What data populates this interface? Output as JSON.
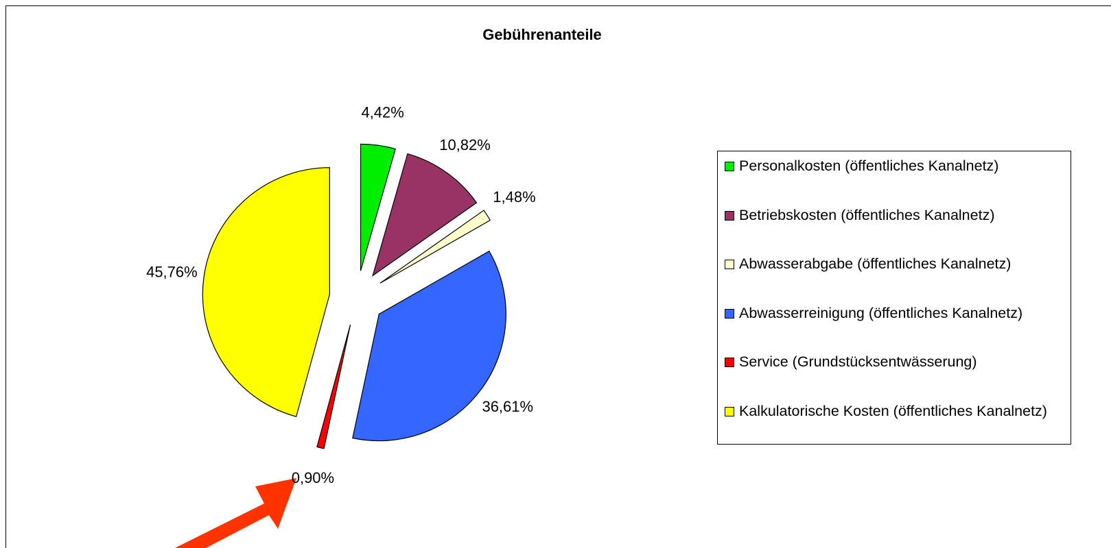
{
  "chart_data": {
    "type": "pie",
    "title": "Gebührenanteile",
    "categories": [
      "Personalkosten (öffentliches Kanalnetz)",
      "Betriebskosten (öffentliches Kanalnetz)",
      "Abwasserabgabe (öffentliches Kanalnetz)",
      "Abwasserreinigung (öffentliches Kanalnetz)",
      "Service (Grundstücksentwässerung)",
      "Kalkulatorische Kosten (öffentliches Kanalnetz)"
    ],
    "values": [
      4.42,
      10.82,
      1.48,
      36.61,
      0.9,
      45.76
    ],
    "value_labels": [
      "4,42%",
      "10,82%",
      "1,48%",
      "36,61%",
      "0,90%",
      "45,76%"
    ],
    "colors": [
      "#00ee00",
      "#993366",
      "#ffffcc",
      "#3366ff",
      "#ff0000",
      "#ffff00"
    ],
    "legend": "right"
  }
}
